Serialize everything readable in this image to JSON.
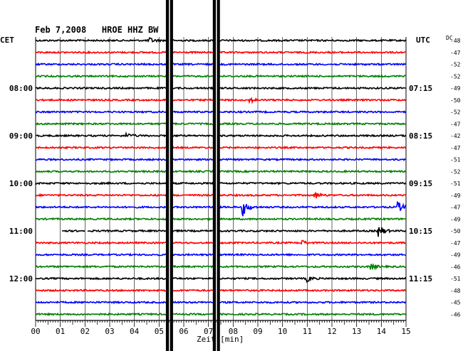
{
  "chart_data": {
    "type": "line",
    "title": "Feb 7,2008   HROE HHZ BW",
    "left_axis_title": "CET",
    "right_axis_title": "UTC",
    "dc_title": "DC",
    "xlabel": "Zeit [min]",
    "xlim": [
      0,
      15
    ],
    "x_ticks": [
      "00",
      "01",
      "02",
      "03",
      "04",
      "05",
      "06",
      "07",
      "08",
      "09",
      "10",
      "11",
      "12",
      "13",
      "14",
      "15"
    ],
    "left_time_labels": [
      {
        "row": 4,
        "label": "08:00"
      },
      {
        "row": 8,
        "label": "09:00"
      },
      {
        "row": 12,
        "label": "10:00"
      },
      {
        "row": 16,
        "label": "11:00"
      },
      {
        "row": 20,
        "label": "12:00"
      }
    ],
    "right_time_labels": [
      {
        "row": 4,
        "label": "07:15"
      },
      {
        "row": 8,
        "label": "08:15"
      },
      {
        "row": 12,
        "label": "09:15"
      },
      {
        "row": 16,
        "label": "10:15"
      },
      {
        "row": 20,
        "label": "11:15"
      }
    ],
    "trace_colors": [
      "#000000",
      "#ff0000",
      "#0000ff",
      "#007f00"
    ],
    "dc_offsets": [
      -48,
      -47,
      -52,
      -52,
      -49,
      -50,
      -52,
      -47,
      -42,
      -47,
      -51,
      -52,
      -51,
      -49,
      -47,
      -49,
      -50,
      -47,
      -49,
      -46,
      -51,
      -48,
      -45,
      -46
    ],
    "gaps": [
      {
        "row": 16,
        "from": 0.0,
        "to": 1.05
      },
      {
        "row": 16,
        "from": 2.0,
        "to": 2.1
      }
    ],
    "events": [
      {
        "row": 0,
        "minute": 4.6,
        "amplitude": 4
      },
      {
        "row": 5,
        "minute": 8.7,
        "amplitude": 3
      },
      {
        "row": 8,
        "minute": 3.7,
        "amplitude": 3
      },
      {
        "row": 13,
        "minute": 11.3,
        "amplitude": 5
      },
      {
        "row": 14,
        "minute": 8.4,
        "amplitude": 12
      },
      {
        "row": 14,
        "minute": 14.7,
        "amplitude": 7
      },
      {
        "row": 16,
        "minute": 13.9,
        "amplitude": 9
      },
      {
        "row": 17,
        "minute": 10.8,
        "amplitude": 3
      },
      {
        "row": 19,
        "minute": 13.6,
        "amplitude": 4
      },
      {
        "row": 20,
        "minute": 11.0,
        "amplitude": 4
      }
    ],
    "disturbances": [
      {
        "minute": 5.42,
        "type": "saturated-spike"
      },
      {
        "minute": 7.32,
        "type": "saturated-spike"
      }
    ],
    "grid": true
  }
}
